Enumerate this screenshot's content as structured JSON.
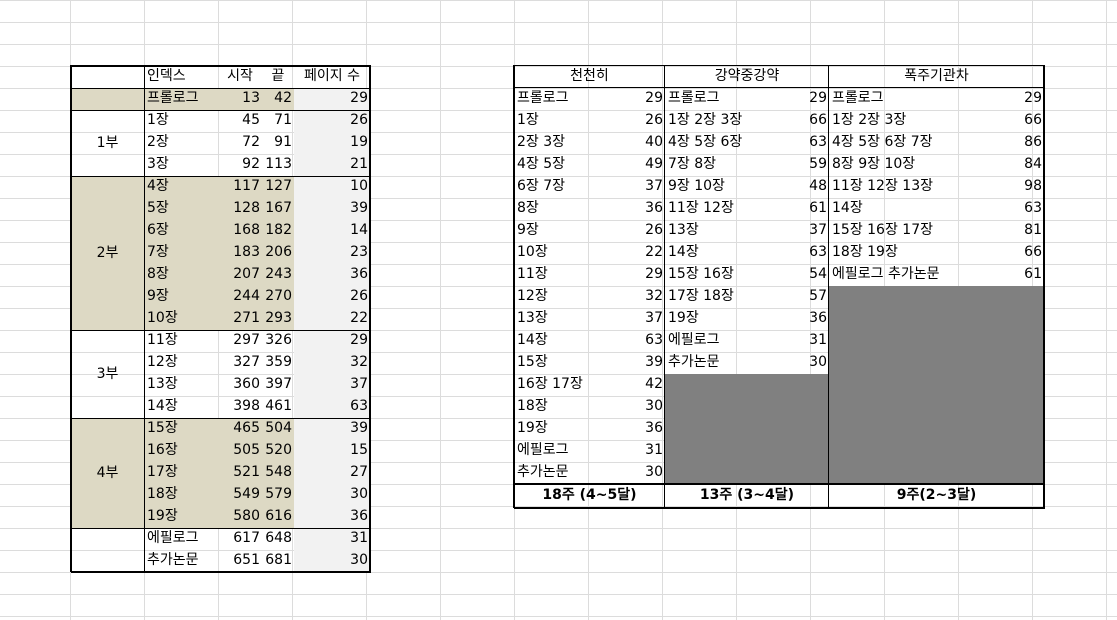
{
  "left_table": {
    "headers": [
      "인덱스",
      "시작",
      "끝",
      "페이지 수"
    ],
    "rows": [
      {
        "part": "",
        "name": "프롤로그",
        "start": "13",
        "end": "42",
        "pages": "29"
      },
      {
        "part": "1부",
        "name": "1장",
        "start": "45",
        "end": "71",
        "pages": "26"
      },
      {
        "part": "",
        "name": "2장",
        "start": "72",
        "end": "91",
        "pages": "19"
      },
      {
        "part": "",
        "name": "3장",
        "start": "92",
        "end": "113",
        "pages": "21"
      },
      {
        "part": "",
        "name": "4장",
        "start": "117",
        "end": "127",
        "pages": "10"
      },
      {
        "part": "",
        "name": "5장",
        "start": "128",
        "end": "167",
        "pages": "39"
      },
      {
        "part": "",
        "name": "6장",
        "start": "168",
        "end": "182",
        "pages": "14"
      },
      {
        "part": "2부",
        "name": "7장",
        "start": "183",
        "end": "206",
        "pages": "23"
      },
      {
        "part": "",
        "name": "8장",
        "start": "207",
        "end": "243",
        "pages": "36"
      },
      {
        "part": "",
        "name": "9장",
        "start": "244",
        "end": "270",
        "pages": "26"
      },
      {
        "part": "",
        "name": "10장",
        "start": "271",
        "end": "293",
        "pages": "22"
      },
      {
        "part": "",
        "name": "11장",
        "start": "297",
        "end": "326",
        "pages": "29"
      },
      {
        "part": "3부",
        "name": "12장",
        "start": "327",
        "end": "359",
        "pages": "32"
      },
      {
        "part": "",
        "name": "13장",
        "start": "360",
        "end": "397",
        "pages": "37"
      },
      {
        "part": "",
        "name": "14장",
        "start": "398",
        "end": "461",
        "pages": "63"
      },
      {
        "part": "",
        "name": "15장",
        "start": "465",
        "end": "504",
        "pages": "39"
      },
      {
        "part": "",
        "name": "16장",
        "start": "505",
        "end": "520",
        "pages": "15"
      },
      {
        "part": "4부",
        "name": "17장",
        "start": "521",
        "end": "548",
        "pages": "27"
      },
      {
        "part": "",
        "name": "18장",
        "start": "549",
        "end": "579",
        "pages": "30"
      },
      {
        "part": "",
        "name": "19장",
        "start": "580",
        "end": "616",
        "pages": "36"
      },
      {
        "part": "",
        "name": "에필로그",
        "start": "617",
        "end": "648",
        "pages": "31"
      },
      {
        "part": "",
        "name": "추가논문",
        "start": "651",
        "end": "681",
        "pages": "30"
      }
    ]
  },
  "plans": [
    {
      "title": "천천히",
      "footer": "18주 (4~5달)",
      "rows": [
        {
          "label": "프롤로그",
          "pages": "29"
        },
        {
          "label": "1장",
          "pages": "26"
        },
        {
          "label": "2장 3장",
          "pages": "40"
        },
        {
          "label": "4장 5장",
          "pages": "49"
        },
        {
          "label": "6장 7장",
          "pages": "37"
        },
        {
          "label": "8장",
          "pages": "36"
        },
        {
          "label": "9장",
          "pages": "26"
        },
        {
          "label": "10장",
          "pages": "22"
        },
        {
          "label": "11장",
          "pages": "29"
        },
        {
          "label": "12장",
          "pages": "32"
        },
        {
          "label": "13장",
          "pages": "37"
        },
        {
          "label": "14장",
          "pages": "63"
        },
        {
          "label": "15장",
          "pages": "39"
        },
        {
          "label": "16장 17장",
          "pages": "42"
        },
        {
          "label": "18장",
          "pages": "30"
        },
        {
          "label": "19장",
          "pages": "36"
        },
        {
          "label": "에필로그",
          "pages": "31"
        },
        {
          "label": "추가논문",
          "pages": "30"
        }
      ]
    },
    {
      "title": "강약중강약",
      "footer": "13주 (3~4달)",
      "rows": [
        {
          "label": "프롤로그",
          "pages": "29"
        },
        {
          "label": "1장 2장 3장",
          "pages": "66"
        },
        {
          "label": "4장 5장 6장",
          "pages": "63"
        },
        {
          "label": "7장 8장",
          "pages": "59"
        },
        {
          "label": "9장 10장",
          "pages": "48"
        },
        {
          "label": "11장 12장",
          "pages": "61"
        },
        {
          "label": "13장",
          "pages": "37"
        },
        {
          "label": "14장",
          "pages": "63"
        },
        {
          "label": "15장 16장",
          "pages": "54"
        },
        {
          "label": "17장 18장",
          "pages": "57"
        },
        {
          "label": "19장",
          "pages": "36"
        },
        {
          "label": "에필로그",
          "pages": "31"
        },
        {
          "label": "추가논문",
          "pages": "30"
        }
      ]
    },
    {
      "title": "폭주기관차",
      "footer": "9주(2~3달)",
      "rows": [
        {
          "label": "프롤로그",
          "pages": "29"
        },
        {
          "label": "1장 2장 3장",
          "pages": "66"
        },
        {
          "label": "4장 5장 6장 7장",
          "pages": "86"
        },
        {
          "label": "8장 9장 10장",
          "pages": "84"
        },
        {
          "label": "11장 12장 13장",
          "pages": "98"
        },
        {
          "label": "14장",
          "pages": "63"
        },
        {
          "label": "15장 16장 17장",
          "pages": "81"
        },
        {
          "label": "18장 19장",
          "pages": "66"
        },
        {
          "label": "에필로그 추가논문",
          "pages": "61"
        }
      ]
    }
  ],
  "colors": {
    "part_fill": "#ddd9c4",
    "pages_fill": "#f2f2f2",
    "empty_fill": "#808080",
    "grid": "#dcdcdc"
  }
}
